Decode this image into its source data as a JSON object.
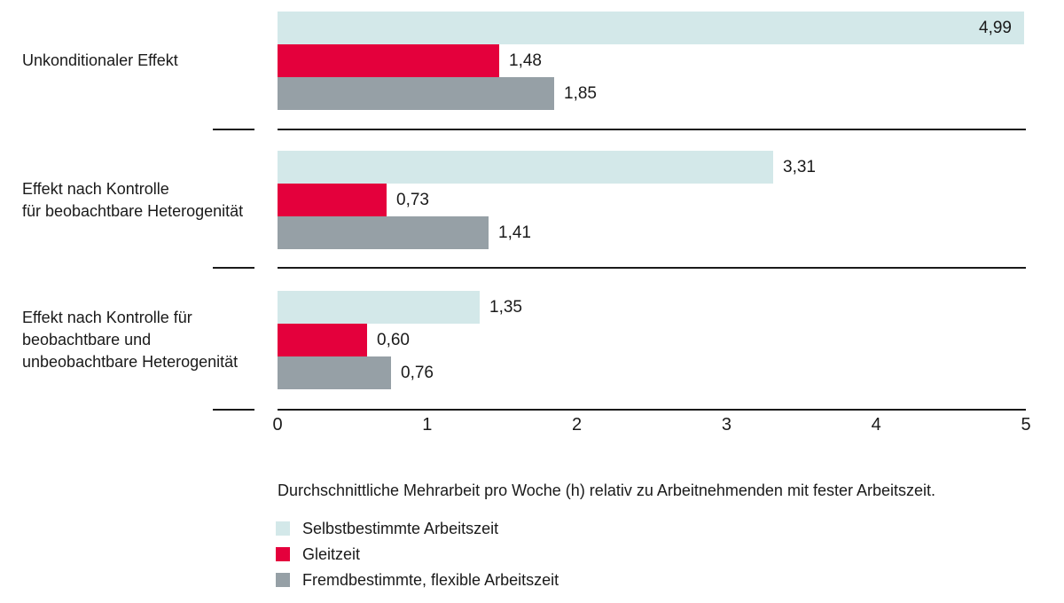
{
  "chart_data": {
    "type": "bar",
    "orientation": "horizontal",
    "caption": "Durchschnittliche Mehrarbeit pro Woche (h) relativ zu Arbeitnehmenden mit fester Arbeitszeit.",
    "x_axis": {
      "min": 0,
      "max": 5,
      "ticks": [
        "0",
        "1",
        "2",
        "3",
        "4",
        "5"
      ]
    },
    "grid": false,
    "legend_position": "bottom-left",
    "text_color": "#1a1a1a",
    "categories": [
      {
        "lines": [
          "Unkonditionaler Effekt"
        ]
      },
      {
        "lines": [
          "Effekt nach Kontrolle",
          "für beobachtbare Heterogenität"
        ]
      },
      {
        "lines": [
          "Effekt nach Kontrolle für",
          "beobachtbare und",
          "unbeobachtbare Heterogenität"
        ]
      }
    ],
    "series": [
      {
        "name": "Selbstbestimmte Arbeitszeit",
        "color": "#d3e8e9",
        "values": [
          4.99,
          3.31,
          1.35
        ],
        "labels": [
          "4,99",
          "3,31",
          "1,35"
        ]
      },
      {
        "name": "Gleitzeit",
        "color": "#e4003c",
        "values": [
          1.48,
          0.73,
          0.6
        ],
        "labels": [
          "1,48",
          "0,73",
          "0,60"
        ]
      },
      {
        "name": "Fremdbestimmte, flexible Arbeitszeit",
        "color": "#96a0a6",
        "values": [
          1.85,
          1.41,
          0.76
        ],
        "labels": [
          "1,85",
          "1,41",
          "0,76"
        ]
      }
    ]
  }
}
